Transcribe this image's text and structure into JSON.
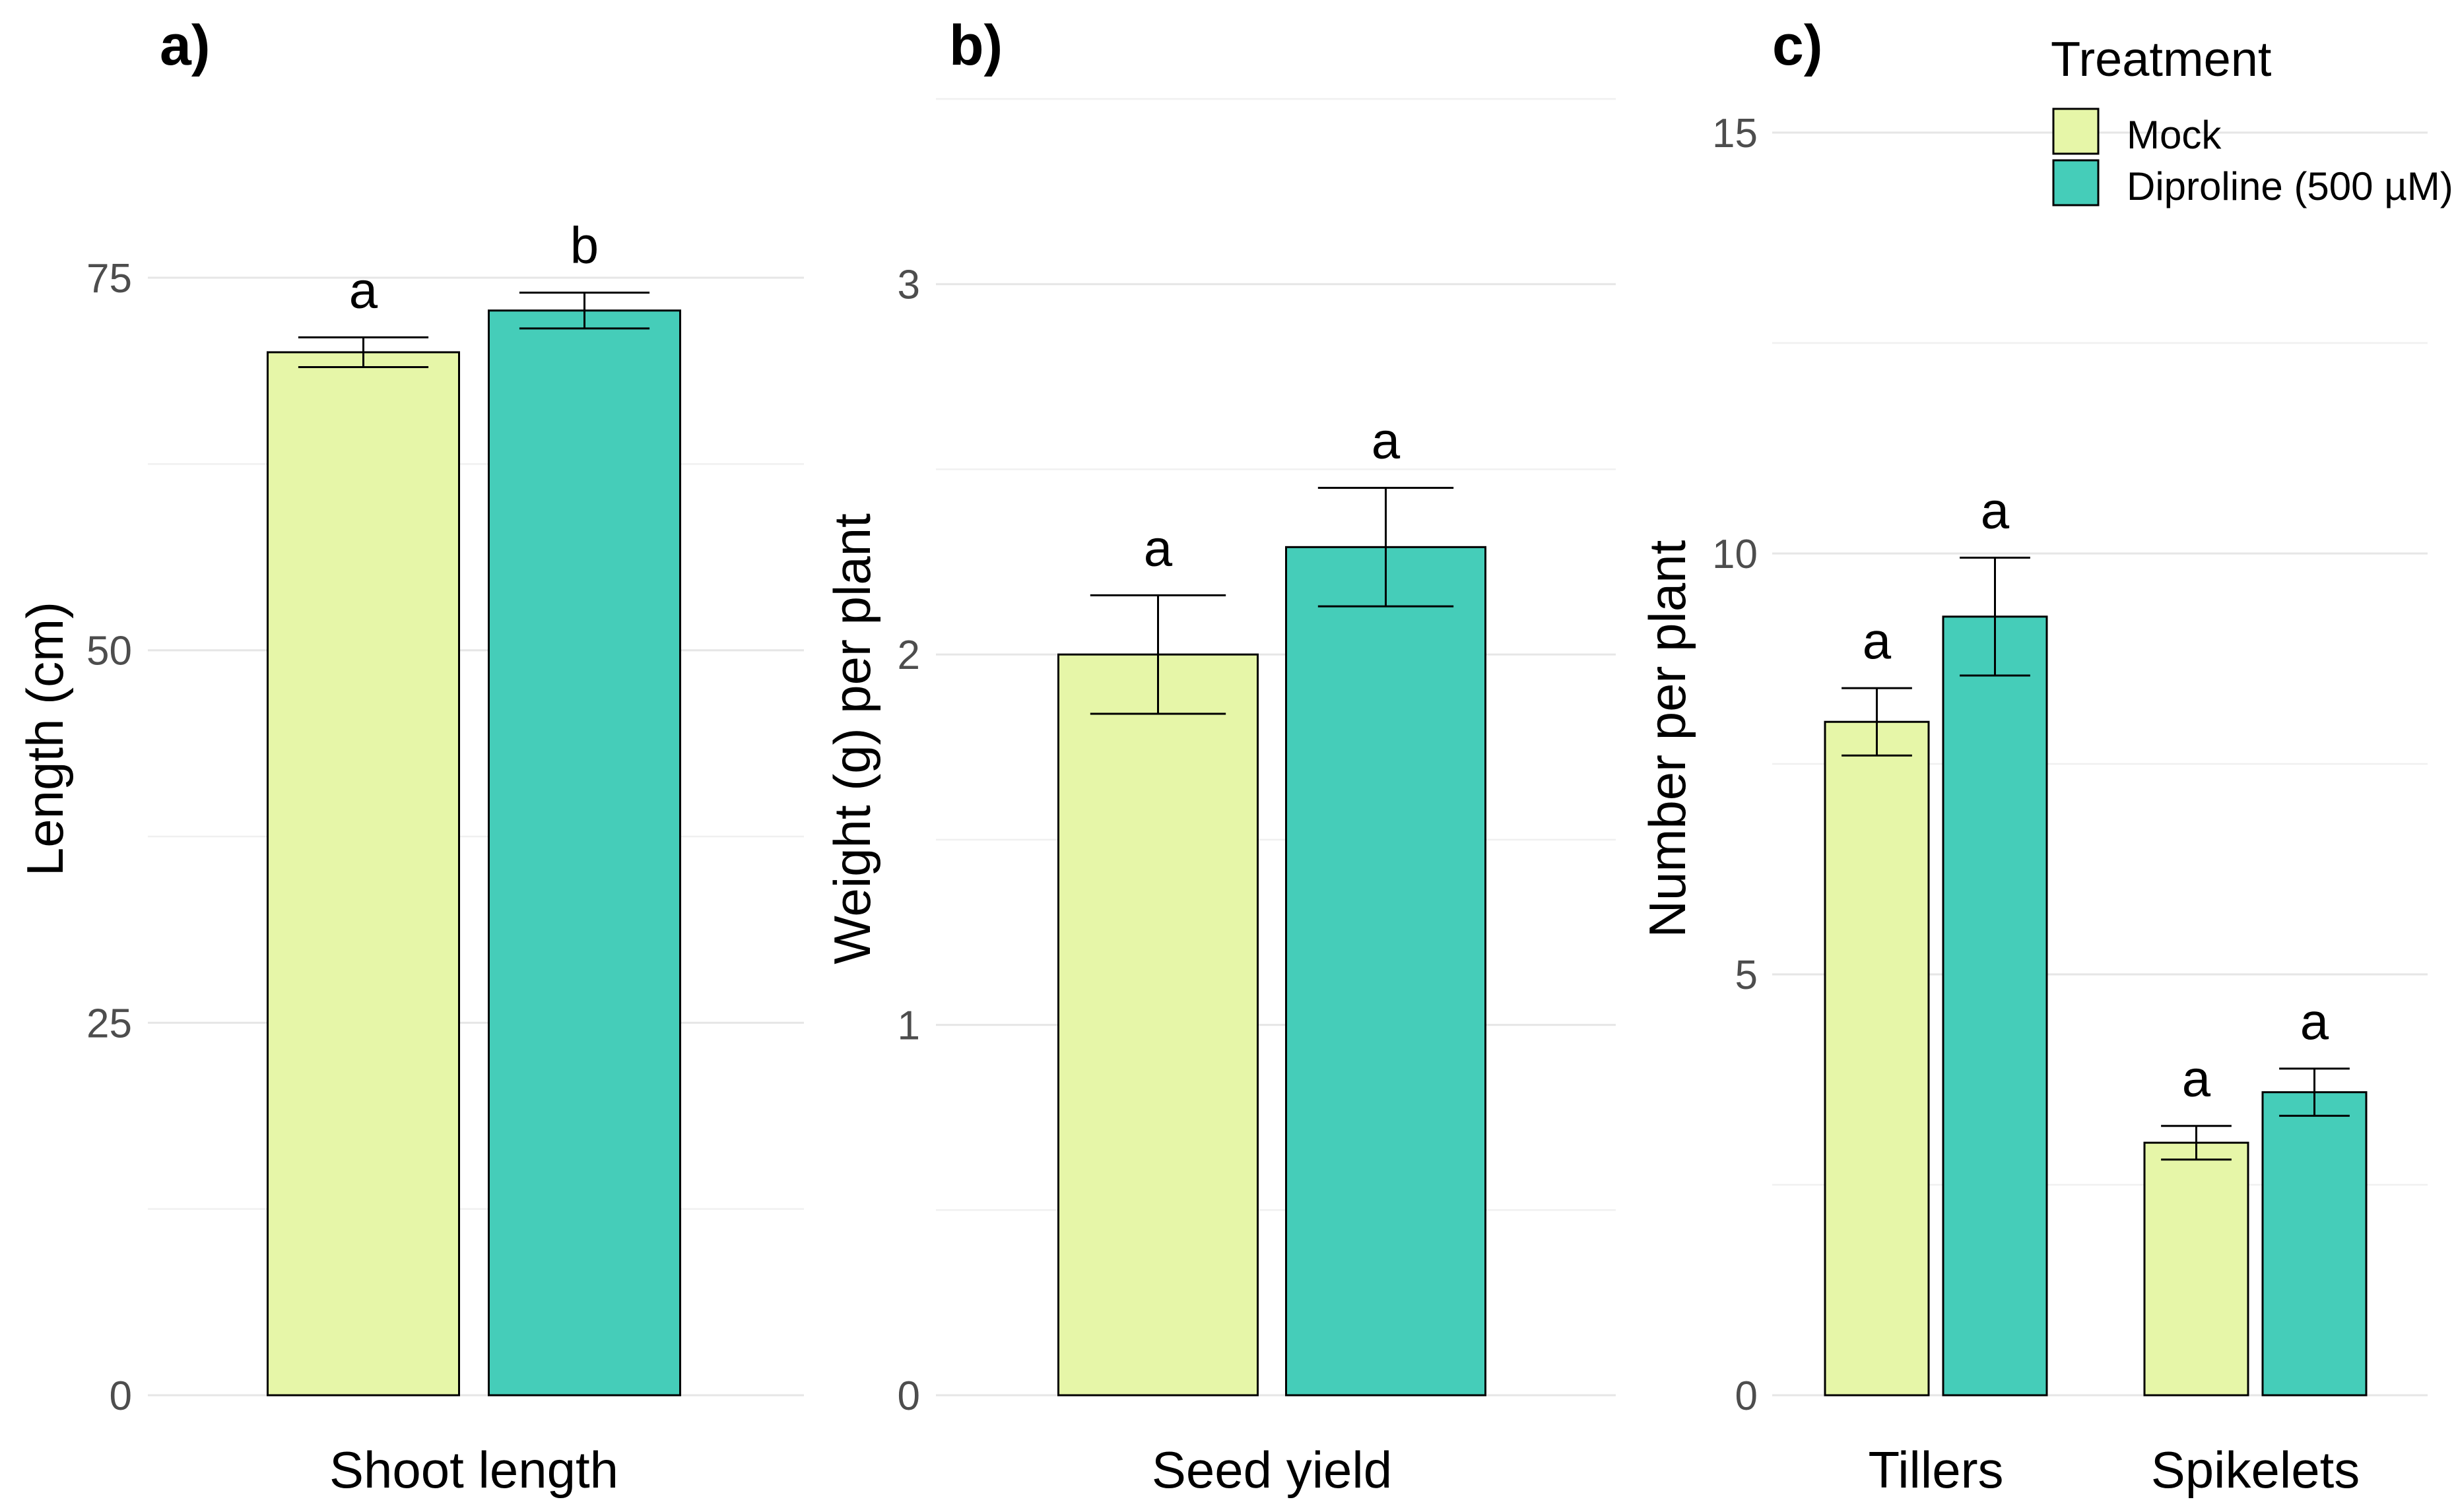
{
  "figure": {
    "legend": {
      "title": "Treatment",
      "entries": [
        {
          "label": "Mock",
          "color": "#e6f6a8"
        },
        {
          "label": "Diproline (500 µM)",
          "color": "#45cdb9"
        }
      ]
    }
  },
  "chart_data": [
    {
      "type": "bar",
      "panel_label": "a)",
      "categories": [
        "Shoot length"
      ],
      "series": [
        {
          "name": "Mock",
          "values": [
            70
          ],
          "errors": [
            1
          ],
          "significance": [
            "a"
          ]
        },
        {
          "name": "Diproline (500 µM)",
          "values": [
            72.8
          ],
          "errors": [
            1.2
          ],
          "significance": [
            "b"
          ]
        }
      ],
      "ylabel": "Length (cm)",
      "xlabel": "",
      "ylim": [
        0,
        87
      ],
      "yticks": [
        0,
        25,
        50,
        75
      ],
      "grid": true
    },
    {
      "type": "bar",
      "panel_label": "b)",
      "categories": [
        "Seed yield"
      ],
      "series": [
        {
          "name": "Mock",
          "values": [
            2.0
          ],
          "errors": [
            0.16
          ],
          "significance": [
            "a"
          ]
        },
        {
          "name": "Diproline (500 µM)",
          "values": [
            2.29
          ],
          "errors": [
            0.16
          ],
          "significance": [
            "a"
          ]
        }
      ],
      "ylabel": "Weight (g) per plant",
      "xlabel": "",
      "ylim": [
        0,
        3.5
      ],
      "yticks": [
        0,
        1,
        2,
        3
      ],
      "grid": true
    },
    {
      "type": "bar",
      "panel_label": "c)",
      "categories": [
        "Tillers",
        "Spikelets"
      ],
      "series": [
        {
          "name": "Mock",
          "values": [
            8.0,
            3.0
          ],
          "errors": [
            0.4,
            0.2
          ],
          "significance": [
            "a",
            "a"
          ]
        },
        {
          "name": "Diproline (500 µM)",
          "values": [
            9.25,
            3.6
          ],
          "errors": [
            0.7,
            0.28
          ],
          "significance": [
            "a",
            "a"
          ]
        }
      ],
      "ylabel": "Number per plant",
      "xlabel": "",
      "ylim": [
        0,
        15.4
      ],
      "yticks": [
        0,
        5,
        10,
        15
      ],
      "grid": true,
      "legend_position": "top-right"
    }
  ]
}
